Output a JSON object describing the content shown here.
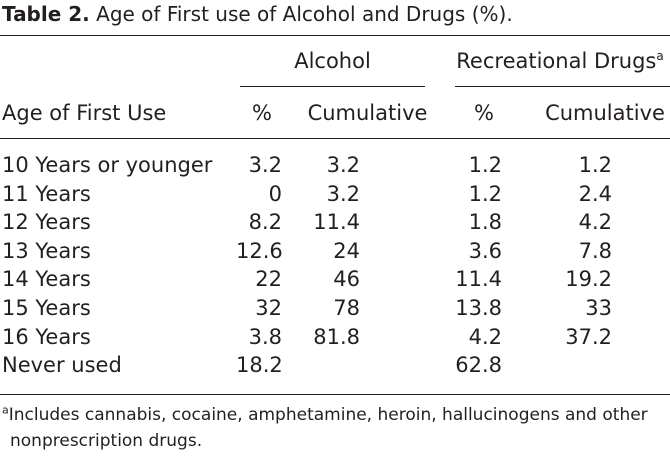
{
  "table": {
    "caption_label": "Table 2.",
    "caption_text": "Age of First use of Alcohol and Drugs (%).",
    "group_headers": {
      "alcohol": "Alcohol",
      "drugs": "Recreational Drugs",
      "drugs_footnote_mark": "a"
    },
    "column_headers": {
      "age": "Age of First Use",
      "alcohol_pct": "%",
      "alcohol_cum": "Cumulative",
      "drugs_pct": "%",
      "drugs_cum": "Cumulative"
    },
    "rows": [
      {
        "age": "10 Years or younger",
        "alcohol_pct": "3.2",
        "alcohol_cum": "3.2",
        "drugs_pct": "1.2",
        "drugs_cum": "1.2"
      },
      {
        "age": "11 Years",
        "alcohol_pct": "0",
        "alcohol_cum": "3.2",
        "drugs_pct": "1.2",
        "drugs_cum": "2.4"
      },
      {
        "age": "12 Years",
        "alcohol_pct": "8.2",
        "alcohol_cum": "11.4",
        "drugs_pct": "1.8",
        "drugs_cum": "4.2"
      },
      {
        "age": "13 Years",
        "alcohol_pct": "12.6",
        "alcohol_cum": "24",
        "drugs_pct": "3.6",
        "drugs_cum": "7.8"
      },
      {
        "age": "14 Years",
        "alcohol_pct": "22",
        "alcohol_cum": "46",
        "drugs_pct": "11.4",
        "drugs_cum": "19.2"
      },
      {
        "age": "15 Years",
        "alcohol_pct": "32",
        "alcohol_cum": "78",
        "drugs_pct": "13.8",
        "drugs_cum": "33"
      },
      {
        "age": "16 Years",
        "alcohol_pct": "3.8",
        "alcohol_cum": "81.8",
        "drugs_pct": "4.2",
        "drugs_cum": "37.2"
      },
      {
        "age": "Never used",
        "alcohol_pct": "18.2",
        "alcohol_cum": "",
        "drugs_pct": "62.8",
        "drugs_cum": ""
      }
    ],
    "footnote": {
      "mark": "a",
      "line1": "Includes cannabis, cocaine, amphetamine, heroin, hallucinogens and other",
      "line2": "nonprescription drugs."
    }
  }
}
